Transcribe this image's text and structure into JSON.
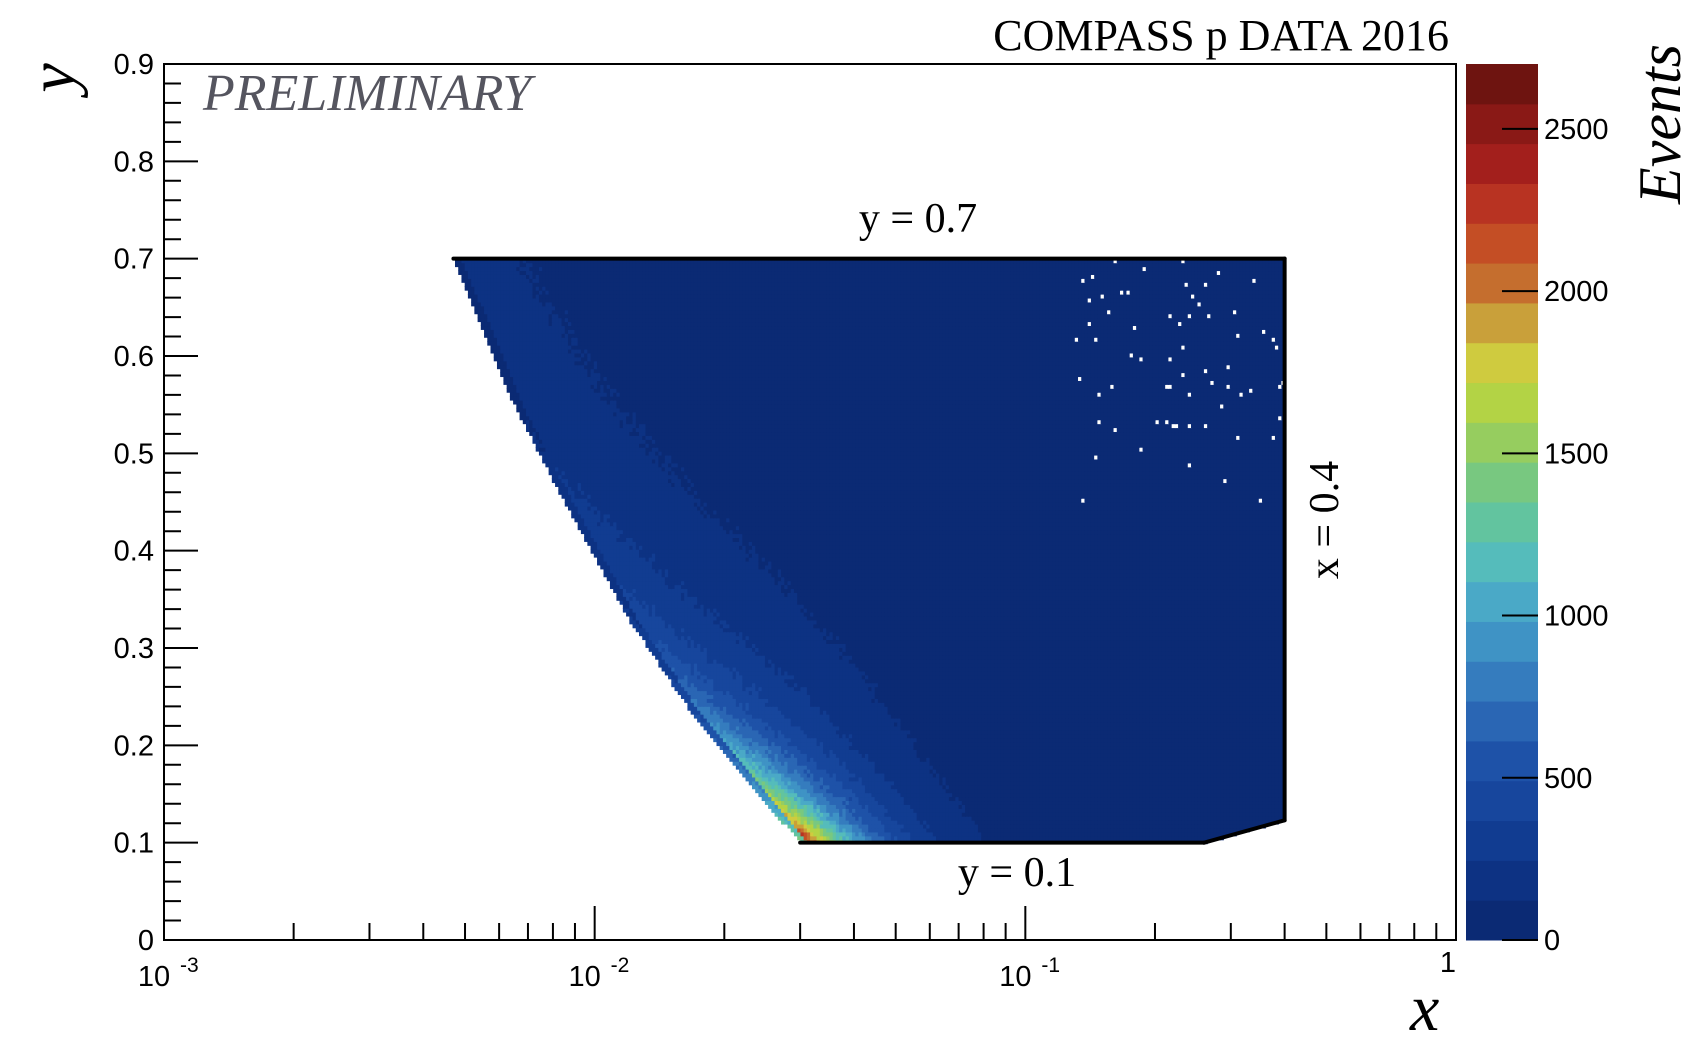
{
  "chart_data": {
    "type": "heatmap",
    "title": "COMPASS p DATA 2016",
    "watermark": "PRELIMINARY",
    "xlabel": "x",
    "ylabel": "y",
    "x_scale": "log",
    "xlim": [
      0.001,
      1
    ],
    "ylim": [
      0,
      0.9
    ],
    "x_ticks": [
      {
        "value": 0.001,
        "base": "10",
        "exp": "-3"
      },
      {
        "value": 0.01,
        "base": "10",
        "exp": "-2"
      },
      {
        "value": 0.1,
        "base": "10",
        "exp": "-1"
      },
      {
        "value": 1,
        "base": "1",
        "exp": ""
      }
    ],
    "y_ticks": [
      "0",
      "0.1",
      "0.2",
      "0.3",
      "0.4",
      "0.5",
      "0.6",
      "0.7",
      "0.8",
      "0.9"
    ],
    "colorbar": {
      "label": "Events",
      "range": [
        0,
        2700
      ],
      "ticks": [
        "0",
        "500",
        "1000",
        "1500",
        "2000",
        "2500"
      ],
      "tick_values": [
        0,
        500,
        1000,
        1500,
        2000,
        2500
      ],
      "colors": [
        "#0b2a74",
        "#0d3283",
        "#113c91",
        "#17469d",
        "#1e52a8",
        "#2a66b4",
        "#357cbe",
        "#3f93c5",
        "#4aa9c7",
        "#55bcbb",
        "#62c49f",
        "#78c880",
        "#96cd5f",
        "#b3d345",
        "#cfcb3f",
        "#c9a03a",
        "#c56e2e",
        "#c44e25",
        "#b83322",
        "#a31f1c",
        "#8a1916",
        "#6e1410"
      ]
    },
    "cuts": [
      {
        "label": "y = 0.7",
        "value": 0.7,
        "x_range": [
          0.0047,
          0.4
        ]
      },
      {
        "label": "y = 0.1",
        "value": 0.1,
        "x_range": [
          0.03,
          0.26
        ]
      },
      {
        "label": "x = 0.4",
        "value": 0.4,
        "y_range": [
          0.123,
          0.7
        ]
      }
    ],
    "density_peak": {
      "x": 0.04,
      "y": 0.11,
      "events": 2650
    },
    "kinematic_boundary": [
      [
        0.0047,
        0.7
      ],
      [
        0.0065,
        0.55
      ],
      [
        0.0085,
        0.45
      ],
      [
        0.012,
        0.33
      ],
      [
        0.017,
        0.23
      ],
      [
        0.023,
        0.16
      ],
      [
        0.03,
        0.1
      ]
    ]
  }
}
